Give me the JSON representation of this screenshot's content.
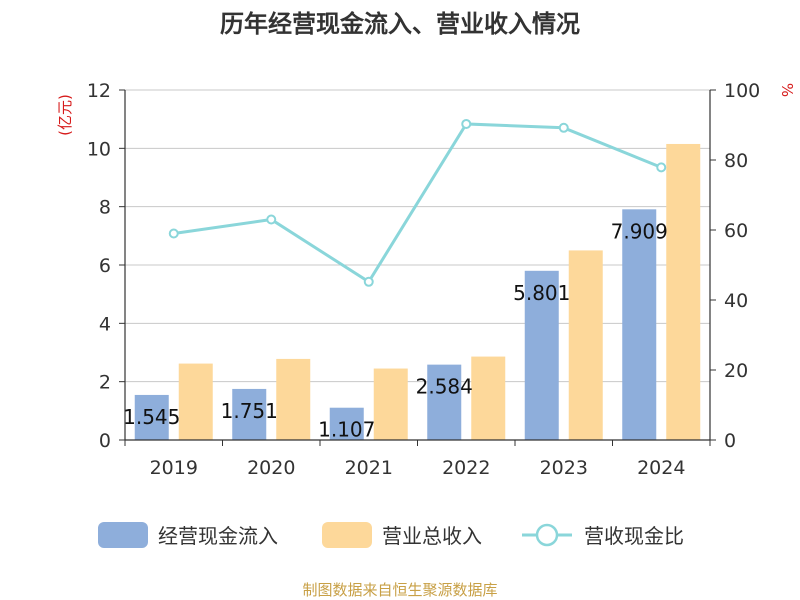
{
  "chart_data": {
    "type": "bar",
    "title": "历年经营现金流入、营业收入情况",
    "categories": [
      "2019",
      "2020",
      "2021",
      "2022",
      "2023",
      "2024"
    ],
    "series": [
      {
        "name": "经营现金流入",
        "type": "bar",
        "axis": "left",
        "color": "#8eaedb",
        "values": [
          1.545,
          1.751,
          1.107,
          2.584,
          5.801,
          7.909
        ],
        "labels": [
          "1.545",
          "1.751",
          "1.107",
          "2.584",
          "5.801",
          "7.909"
        ]
      },
      {
        "name": "营业总收入",
        "type": "bar",
        "axis": "left",
        "color": "#fdd89a",
        "values": [
          2.62,
          2.78,
          2.45,
          2.86,
          6.5,
          10.15
        ]
      },
      {
        "name": "营收现金比",
        "type": "line",
        "axis": "right",
        "color": "#8ad6da",
        "values": [
          59.0,
          63.0,
          45.2,
          90.3,
          89.2,
          77.9
        ]
      }
    ],
    "y_left": {
      "unit": "(亿元)",
      "range": [
        0,
        12
      ],
      "ticks": [
        "0",
        "2",
        "4",
        "6",
        "8",
        "10",
        "12"
      ]
    },
    "y_right": {
      "unit": "%",
      "range": [
        0,
        100
      ],
      "ticks": [
        "0",
        "20",
        "40",
        "60",
        "80",
        "100"
      ]
    },
    "grid": true,
    "legend_position": "bottom"
  },
  "footer": {
    "source": "制图数据来自恒生聚源数据库"
  }
}
